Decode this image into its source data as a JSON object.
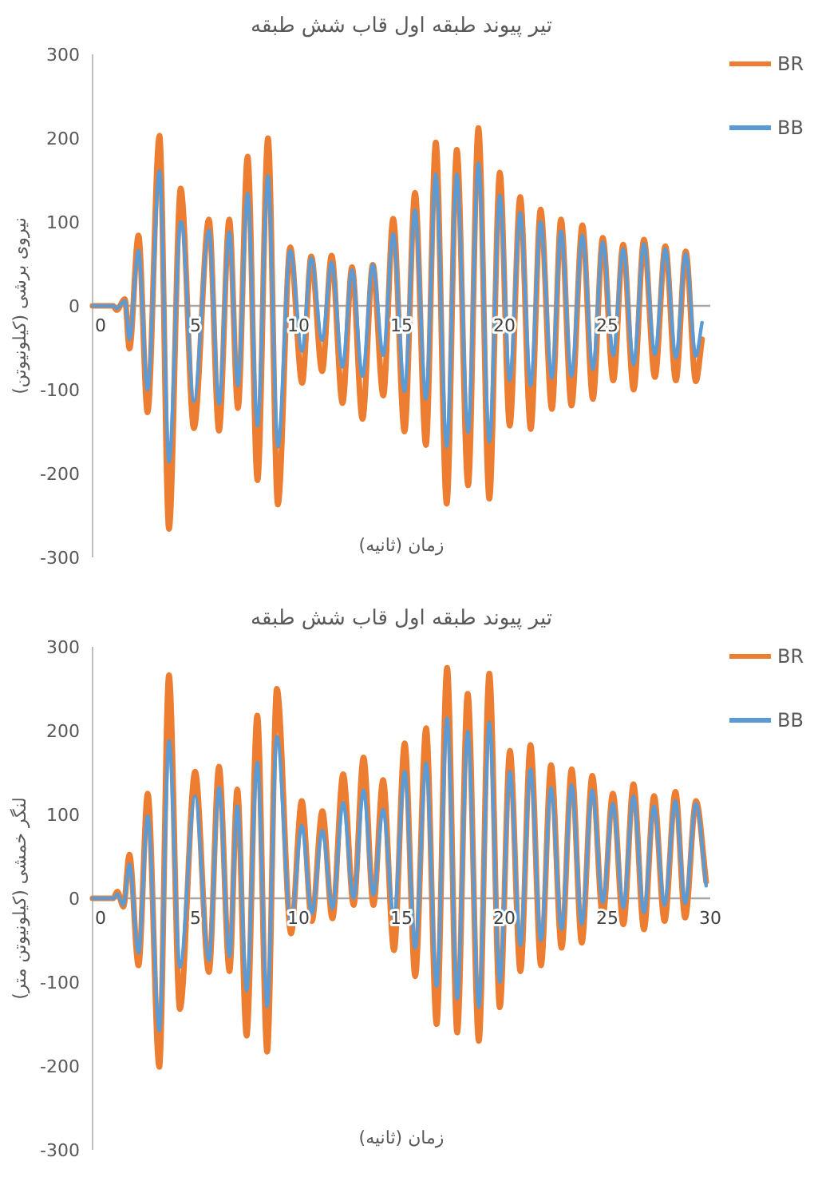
{
  "chart_data": [
    {
      "type": "line",
      "title": "تیر پیوند طبقه اول قاب شش طبقه",
      "xlabel": "زمان (ثانیه)",
      "ylabel": "نیروی برشی (کیلونیوتن)",
      "legend": "right",
      "xlim": [
        0,
        30
      ],
      "xticks": [
        0,
        5,
        10,
        15,
        20,
        25
      ],
      "ylim": [
        -300,
        300
      ],
      "yticks": [
        -300,
        -200,
        -100,
        0,
        100,
        200,
        300
      ],
      "x": [
        0,
        1.0,
        1.17,
        1.57,
        1.79,
        2.23,
        2.67,
        3.25,
        3.71,
        4.28,
        4.4,
        4.92,
        5.65,
        6.14,
        6.64,
        7.06,
        7.53,
        8.01,
        8.52,
        9.0,
        9.6,
        10.18,
        10.62,
        11.15,
        11.61,
        12.14,
        12.6,
        13.11,
        13.61,
        14.12,
        14.6,
        15.15,
        15.66,
        16.19,
        16.67,
        17.2,
        17.69,
        18.24,
        18.74,
        19.27,
        19.78,
        20.26,
        20.77,
        21.28,
        21.76,
        22.31,
        22.75,
        23.26,
        23.79,
        24.3,
        24.78,
        25.29,
        25.77,
        26.28,
        26.78,
        27.31,
        27.82,
        28.33,
        28.81,
        29.3,
        29.6
      ],
      "series": [
        {
          "name": "BR",
          "color": "#ed7d31",
          "values": [
            0,
            0,
            -5,
            8,
            -51,
            84,
            -127,
            203,
            -266,
            140,
            115,
            -146,
            103,
            -149,
            103,
            -122,
            178,
            -208,
            200,
            -237,
            70,
            -92,
            59,
            -78,
            60,
            -116,
            46,
            -135,
            49,
            -107,
            104,
            -150,
            135,
            -166,
            195,
            -236,
            186,
            -214,
            212,
            -230,
            159,
            -143,
            130,
            -147,
            115,
            -123,
            103,
            -119,
            96,
            -111,
            81,
            -89,
            73,
            -100,
            79,
            -85,
            71,
            -89,
            65,
            -90,
            -40
          ]
        },
        {
          "name": "BB",
          "color": "#5b9bd5",
          "values": [
            0,
            0,
            -3,
            6,
            -40,
            66,
            -100,
            161,
            -186,
            100,
            90,
            -114,
            90,
            -117,
            88,
            -95,
            134,
            -143,
            155,
            -168,
            66,
            -54,
            57,
            -41,
            52,
            -73,
            43,
            -84,
            49,
            -59,
            86,
            -102,
            114,
            -111,
            157,
            -168,
            157,
            -151,
            170,
            -162,
            132,
            -89,
            111,
            -95,
            100,
            -86,
            89,
            -84,
            84,
            -76,
            76,
            -59,
            68,
            -70,
            74,
            -58,
            68,
            -62,
            62,
            -60,
            -20
          ]
        }
      ]
    },
    {
      "type": "line",
      "title": "تیر پیوند طبقه اول قاب شش طبقه",
      "xlabel": "زمان (ثانیه)",
      "ylabel": "لنگر خمشی (کیلونیوتن متر)",
      "legend": "right",
      "xlim": [
        0,
        30
      ],
      "xticks": [
        0,
        5,
        10,
        15,
        20,
        25,
        30
      ],
      "ylim": [
        -300,
        300
      ],
      "yticks": [
        -300,
        -200,
        -100,
        0,
        100,
        200,
        300
      ],
      "x": [
        0,
        1.0,
        1.2,
        1.5,
        1.79,
        2.23,
        2.68,
        3.24,
        3.71,
        4.24,
        4.98,
        5.65,
        6.14,
        6.65,
        7.03,
        7.48,
        8.0,
        8.48,
        8.95,
        9.64,
        10.16,
        10.65,
        11.16,
        11.65,
        12.17,
        12.68,
        13.16,
        13.64,
        14.11,
        14.64,
        15.16,
        15.67,
        16.2,
        16.71,
        17.22,
        17.71,
        18.22,
        18.76,
        19.27,
        19.78,
        20.27,
        20.78,
        21.27,
        21.78,
        22.27,
        22.78,
        23.27,
        23.76,
        24.27,
        24.78,
        25.27,
        25.78,
        26.27,
        26.78,
        27.27,
        27.78,
        28.31,
        28.78,
        29.31,
        29.8
      ],
      "series": [
        {
          "name": "BR",
          "color": "#ed7d31",
          "values": [
            0,
            0,
            8,
            -10,
            52,
            -80,
            125,
            -201,
            266,
            -132,
            151,
            -88,
            157,
            -87,
            130,
            -164,
            218,
            -183,
            250,
            -42,
            116,
            -27,
            104,
            -24,
            148,
            -8,
            168,
            -8,
            141,
            -62,
            185,
            -93,
            203,
            -150,
            275,
            -160,
            244,
            -170,
            268,
            -130,
            176,
            -87,
            183,
            -80,
            159,
            -59,
            154,
            -53,
            146,
            -21,
            125,
            -31,
            136,
            -37,
            122,
            -27,
            127,
            -23,
            116,
            20
          ]
        },
        {
          "name": "BB",
          "color": "#5b9bd5",
          "values": [
            0,
            0,
            5,
            -8,
            41,
            -65,
            98,
            -158,
            188,
            -82,
            122,
            -74,
            132,
            -69,
            110,
            -110,
            162,
            -129,
            193,
            -29,
            87,
            -18,
            81,
            -12,
            114,
            0,
            129,
            4,
            106,
            -24,
            151,
            -59,
            161,
            -105,
            215,
            -120,
            199,
            -130,
            210,
            -100,
            151,
            -56,
            154,
            -50,
            132,
            -37,
            135,
            -31,
            129,
            -5,
            113,
            -11,
            122,
            -17,
            110,
            -8,
            116,
            -6,
            113,
            15
          ]
        }
      ]
    }
  ]
}
